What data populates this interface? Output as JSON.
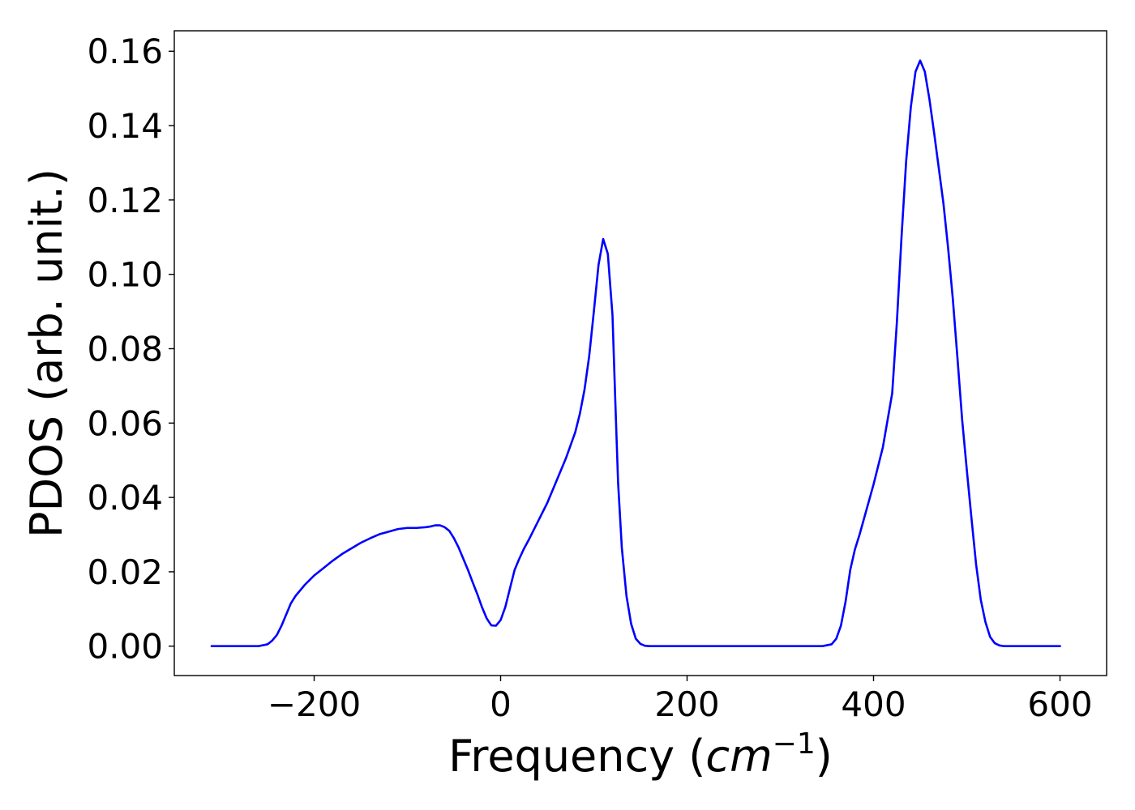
{
  "chart_data": {
    "type": "line",
    "title": "",
    "xlabel": {
      "text_before": "Frequency (",
      "math_var": "cm",
      "superscript": "−1",
      "text_after": ")"
    },
    "ylabel": "PDOS (arb. unit.)",
    "xlim": [
      -350,
      650
    ],
    "ylim": [
      -0.0079,
      0.1655
    ],
    "grid": false,
    "legend": "none",
    "xticks": [
      -200,
      0,
      200,
      400,
      600
    ],
    "xtick_labels": [
      "−200",
      "0",
      "200",
      "400",
      "600"
    ],
    "yticks": [
      0.0,
      0.02,
      0.04,
      0.06,
      0.08,
      0.1,
      0.12,
      0.14,
      0.16
    ],
    "ytick_labels": [
      "0.00",
      "0.02",
      "0.04",
      "0.06",
      "0.08",
      "0.10",
      "0.12",
      "0.14",
      "0.16"
    ],
    "series": [
      {
        "color": "#0000ff",
        "x": [
          -310,
          -260,
          -250,
          -245,
          -240,
          -235,
          -230,
          -225,
          -220,
          -210,
          -200,
          -190,
          -180,
          -170,
          -160,
          -150,
          -140,
          -130,
          -120,
          -110,
          -100,
          -90,
          -80,
          -75,
          -70,
          -65,
          -60,
          -55,
          -50,
          -45,
          -40,
          -35,
          -30,
          -25,
          -20,
          -15,
          -10,
          -5,
          0,
          5,
          10,
          15,
          20,
          25,
          30,
          40,
          50,
          60,
          70,
          80,
          85,
          90,
          95,
          100,
          105,
          110,
          115,
          120,
          123,
          126,
          130,
          135,
          140,
          145,
          150,
          155,
          160,
          170,
          200,
          300,
          345,
          355,
          360,
          365,
          370,
          375,
          380,
          385,
          390,
          400,
          410,
          420,
          425,
          430,
          435,
          440,
          445,
          450,
          455,
          460,
          465,
          470,
          475,
          480,
          485,
          490,
          495,
          500,
          505,
          510,
          515,
          520,
          525,
          530,
          535,
          540,
          545,
          550,
          560,
          600
        ],
        "y": [
          0.0,
          0.0,
          0.0005,
          0.0015,
          0.003,
          0.0055,
          0.0085,
          0.0115,
          0.0135,
          0.0165,
          0.019,
          0.021,
          0.023,
          0.0248,
          0.0263,
          0.0278,
          0.029,
          0.0301,
          0.0308,
          0.0315,
          0.0318,
          0.0318,
          0.032,
          0.0322,
          0.0325,
          0.0325,
          0.032,
          0.031,
          0.029,
          0.0265,
          0.0235,
          0.0205,
          0.0172,
          0.014,
          0.0105,
          0.0075,
          0.0056,
          0.0055,
          0.007,
          0.0105,
          0.0155,
          0.0205,
          0.0235,
          0.0262,
          0.0285,
          0.0335,
          0.0385,
          0.0445,
          0.0505,
          0.0575,
          0.0625,
          0.069,
          0.078,
          0.09,
          0.1025,
          0.1095,
          0.1055,
          0.089,
          0.066,
          0.044,
          0.0265,
          0.0135,
          0.006,
          0.002,
          0.0006,
          0.0001,
          0.0,
          0.0,
          0.0,
          0.0,
          0.0,
          0.0005,
          0.002,
          0.0055,
          0.012,
          0.0205,
          0.026,
          0.03,
          0.0345,
          0.0435,
          0.0535,
          0.068,
          0.087,
          0.11,
          0.1305,
          0.145,
          0.1545,
          0.1575,
          0.1545,
          0.147,
          0.138,
          0.1285,
          0.119,
          0.107,
          0.0935,
          0.0775,
          0.061,
          0.0475,
          0.0345,
          0.022,
          0.0125,
          0.0065,
          0.0025,
          0.0008,
          0.0002,
          0.0,
          0.0,
          0.0,
          0.0,
          0.0
        ]
      }
    ]
  }
}
